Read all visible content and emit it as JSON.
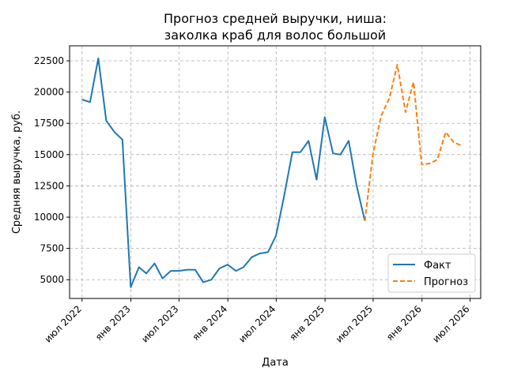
{
  "chart_data": {
    "type": "line",
    "title_line1": "Прогноз средней выручки, ниша:",
    "title_line2": "заколка краб для волос большой",
    "xlabel": "Дата",
    "ylabel": "Средняя выручка, руб.",
    "ylim": [
      3500,
      23700
    ],
    "xlim": [
      "2022-05-15",
      "2026-08-10"
    ],
    "yticks": [
      5000,
      7500,
      10000,
      12500,
      15000,
      17500,
      20000,
      22500
    ],
    "ytick_labels": [
      "5000",
      "7500",
      "10000",
      "12500",
      "15000",
      "17500",
      "20000",
      "22500"
    ],
    "xticks": [
      "2022-07-01",
      "2023-01-01",
      "2023-07-01",
      "2024-01-01",
      "2024-07-01",
      "2025-01-01",
      "2025-07-01",
      "2026-01-01",
      "2026-07-01"
    ],
    "xtick_labels": [
      "июл 2022",
      "янв 2023",
      "июл 2023",
      "янв 2024",
      "июл 2024",
      "янв 2025",
      "июл 2025",
      "янв 2026",
      "июл 2026"
    ],
    "grid": true,
    "legend_position": "lower-right",
    "series": [
      {
        "name": "Факт",
        "color": "#1f77b4",
        "style": "solid",
        "x": [
          "2022-06-30",
          "2022-07-31",
          "2022-08-31",
          "2022-09-30",
          "2022-10-31",
          "2022-11-30",
          "2022-12-31",
          "2023-01-31",
          "2023-02-28",
          "2023-03-31",
          "2023-04-30",
          "2023-05-31",
          "2023-06-30",
          "2023-07-31",
          "2023-08-31",
          "2023-09-30",
          "2023-10-31",
          "2023-11-30",
          "2023-12-31",
          "2024-01-31",
          "2024-02-29",
          "2024-03-31",
          "2024-04-30",
          "2024-05-31",
          "2024-06-30",
          "2024-07-31",
          "2024-08-31",
          "2024-09-30",
          "2024-10-31",
          "2024-11-30",
          "2024-12-31",
          "2025-01-31",
          "2025-02-28",
          "2025-03-31",
          "2025-04-30",
          "2025-05-31",
          "2025-06-30"
        ],
        "y": [
          19400,
          19200,
          22700,
          17700,
          16800,
          16200,
          4400,
          6000,
          5500,
          6300,
          5100,
          5700,
          5700,
          5800,
          5800,
          4800,
          5000,
          5900,
          6200,
          5700,
          6000,
          6800,
          7100,
          7200,
          8500,
          11700,
          15200,
          15200,
          16100,
          13000,
          18000,
          15100,
          15000,
          16100,
          12500,
          9700,
          null
        ]
      },
      {
        "name": "Прогноз",
        "color": "#ff7f0e",
        "style": "dashed",
        "x": [
          "2025-05-31",
          "2025-06-30",
          "2025-07-31",
          "2025-08-31",
          "2025-09-30",
          "2025-10-31",
          "2025-11-30",
          "2025-12-31",
          "2026-01-31",
          "2026-02-28",
          "2026-03-31",
          "2026-04-30",
          "2026-05-31"
        ],
        "y": [
          9700,
          15000,
          18100,
          19500,
          22200,
          18400,
          20800,
          14200,
          14300,
          14600,
          16800,
          16000,
          15700
        ]
      }
    ]
  }
}
